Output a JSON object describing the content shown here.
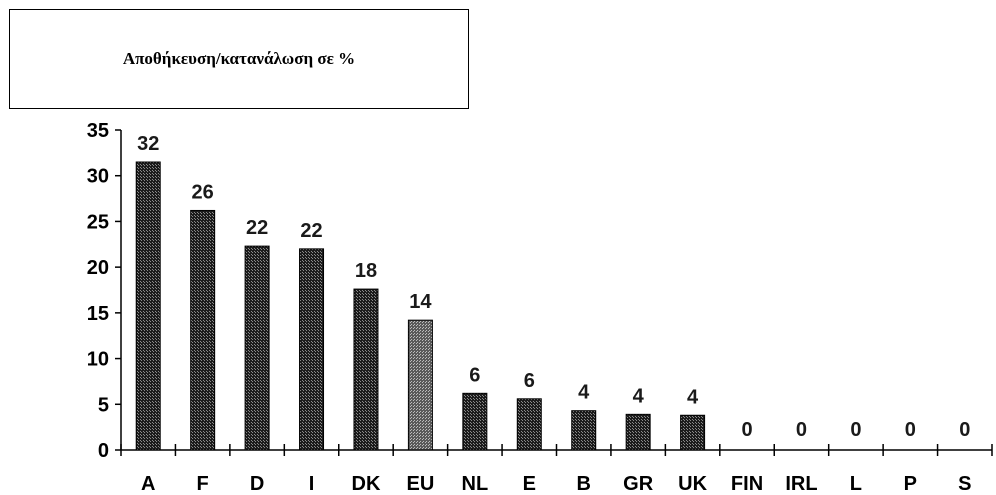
{
  "chart_data": {
    "type": "bar",
    "title": "Αποθήκευση/κατανάλωση σε %",
    "categories": [
      "A",
      "F",
      "D",
      "I",
      "DK",
      "EU",
      "NL",
      "E",
      "B",
      "GR",
      "UK",
      "FIN",
      "IRL",
      "L",
      "P",
      "S"
    ],
    "values": [
      31.5,
      26.2,
      22.3,
      22.0,
      17.6,
      14.2,
      6.2,
      5.6,
      4.3,
      3.9,
      3.8,
      0,
      0,
      0,
      0,
      0
    ],
    "data_labels": [
      "32",
      "26",
      "22",
      "22",
      "18",
      "14",
      "6",
      "6",
      "4",
      "4",
      "4",
      "0",
      "0",
      "0",
      "0",
      "0"
    ],
    "highlight_category": "EU",
    "ylim": [
      0,
      35
    ],
    "yticks": [
      0,
      5,
      10,
      15,
      20,
      25,
      30,
      35
    ],
    "xlabel": "",
    "ylabel": "",
    "grid": false,
    "colors": {
      "bar": "#1c1c1c",
      "highlight": "#6e6e6e",
      "axis": "#000000"
    }
  }
}
